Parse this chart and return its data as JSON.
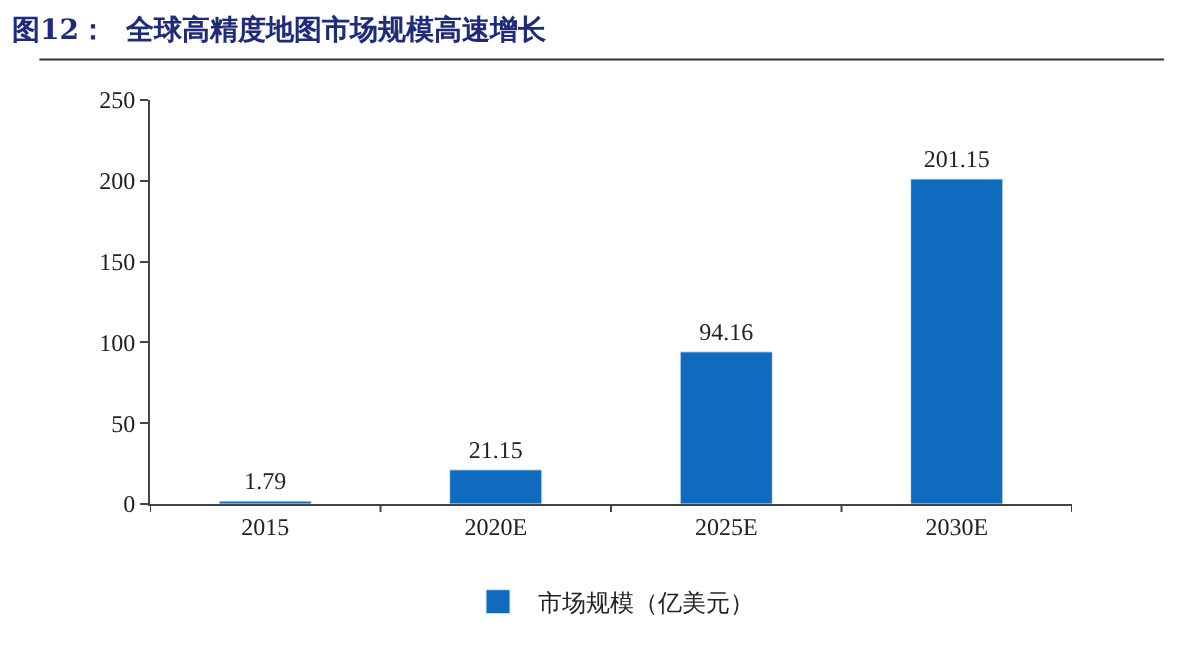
{
  "chart_data": {
    "type": "bar",
    "title": "图12：  全球高精度地图市场规模高速增长",
    "categories": [
      "2015",
      "2020E",
      "2025E",
      "2030E"
    ],
    "series": [
      {
        "name": "市场规模（亿美元）",
        "color": "#0e6bbd",
        "values": [
          1.79,
          21.15,
          94.16,
          201.15
        ]
      }
    ],
    "ylim": [
      0,
      250
    ],
    "yticks": [
      0,
      50,
      100,
      150,
      200,
      250
    ],
    "legend": "bottom",
    "data_labels": true
  }
}
